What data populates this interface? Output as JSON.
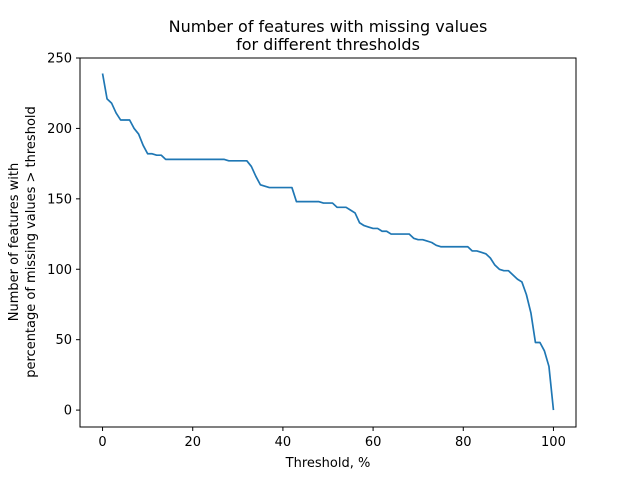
{
  "chart_data": {
    "type": "line",
    "title": [
      "Number of features with missing values",
      "for different thresholds"
    ],
    "xlabel": "Threshold, %",
    "ylabel": [
      "Number of features with",
      "percentage of missing values > threshold"
    ],
    "xlim": [
      -5,
      105
    ],
    "ylim": [
      -12,
      250
    ],
    "xticks": [
      0,
      20,
      40,
      60,
      80,
      100
    ],
    "yticks": [
      0,
      50,
      100,
      150,
      200,
      250
    ],
    "grid": false,
    "series": [
      {
        "color": "#1f77b4",
        "x": [
          0,
          1,
          2,
          3,
          4,
          5,
          6,
          7,
          8,
          9,
          10,
          11,
          12,
          13,
          14,
          15,
          16,
          17,
          18,
          19,
          20,
          21,
          22,
          23,
          24,
          25,
          26,
          27,
          28,
          29,
          30,
          31,
          32,
          33,
          34,
          35,
          36,
          37,
          38,
          39,
          40,
          41,
          42,
          43,
          44,
          45,
          46,
          47,
          48,
          49,
          50,
          51,
          52,
          53,
          54,
          55,
          56,
          57,
          58,
          59,
          60,
          61,
          62,
          63,
          64,
          65,
          66,
          67,
          68,
          69,
          70,
          71,
          72,
          73,
          74,
          75,
          76,
          77,
          78,
          79,
          80,
          81,
          82,
          83,
          84,
          85,
          86,
          87,
          88,
          89,
          90,
          91,
          92,
          93,
          94,
          95,
          96,
          97,
          98,
          99,
          100
        ],
        "y": [
          239,
          221,
          218,
          211,
          206,
          206,
          206,
          200,
          196,
          188,
          182,
          182,
          181,
          181,
          178,
          178,
          178,
          178,
          178,
          178,
          178,
          178,
          178,
          178,
          178,
          178,
          178,
          178,
          177,
          177,
          177,
          177,
          177,
          173,
          166,
          160,
          159,
          158,
          158,
          158,
          158,
          158,
          158,
          148,
          148,
          148,
          148,
          148,
          148,
          147,
          147,
          147,
          144,
          144,
          144,
          142,
          140,
          133,
          131,
          130,
          129,
          129,
          127,
          127,
          125,
          125,
          125,
          125,
          125,
          122,
          121,
          121,
          120,
          119,
          117,
          116,
          116,
          116,
          116,
          116,
          116,
          116,
          113,
          113,
          112,
          111,
          108,
          103,
          100,
          99,
          99,
          96,
          93,
          91,
          82,
          69,
          48,
          48,
          42,
          31,
          0
        ]
      }
    ]
  }
}
